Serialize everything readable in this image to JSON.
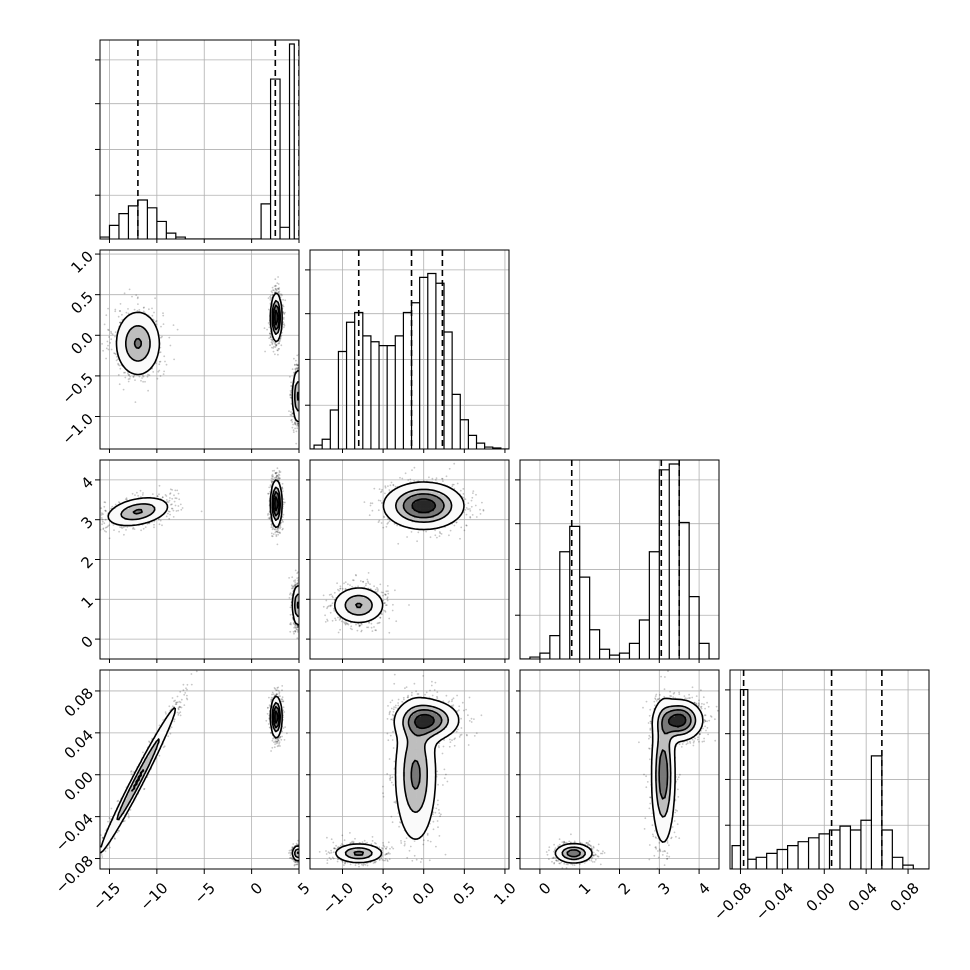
{
  "chart_data": {
    "type": "corner",
    "parameters": [
      {
        "range": [
          -16,
          5
        ],
        "ticks": [
          -15,
          -10,
          -5,
          0,
          5
        ],
        "tick_labels": [
          "−15",
          "−10",
          "−5",
          "0",
          "5"
        ],
        "quantiles": [
          -12,
          2.5,
          5.0
        ],
        "histogram": {
          "bins": [
            [
              -16,
              -15,
              0.01
            ],
            [
              -15,
              -14,
              0.07
            ],
            [
              -14,
              -13,
              0.13
            ],
            [
              -13,
              -12,
              0.17
            ],
            [
              -12,
              -11,
              0.2
            ],
            [
              -11,
              -10,
              0.16
            ],
            [
              -10,
              -9,
              0.09
            ],
            [
              -9,
              -8,
              0.03
            ],
            [
              -8,
              -7,
              0.01
            ],
            [
              1,
              2,
              0.18
            ],
            [
              2,
              3,
              0.82
            ],
            [
              3,
              4,
              0.06
            ],
            [
              4,
              4.5,
              1.0
            ]
          ]
        }
      },
      {
        "range": [
          -1.4,
          1.05
        ],
        "ticks": [
          -1.0,
          -0.5,
          0.0,
          0.5,
          1.0
        ],
        "tick_labels": [
          "−1.0",
          "−0.5",
          "0.0",
          "0.5",
          "1.0"
        ],
        "quantiles": [
          -0.8,
          -0.15,
          0.23
        ],
        "histogram": {
          "bins": [
            [
              -1.35,
              -1.25,
              0.02
            ],
            [
              -1.25,
              -1.15,
              0.05
            ],
            [
              -1.15,
              -1.05,
              0.2
            ],
            [
              -1.05,
              -0.95,
              0.5
            ],
            [
              -0.95,
              -0.85,
              0.65
            ],
            [
              -0.85,
              -0.75,
              0.7
            ],
            [
              -0.75,
              -0.65,
              0.58
            ],
            [
              -0.65,
              -0.55,
              0.55
            ],
            [
              -0.55,
              -0.45,
              0.53
            ],
            [
              -0.45,
              -0.35,
              0.53
            ],
            [
              -0.35,
              -0.25,
              0.58
            ],
            [
              -0.25,
              -0.15,
              0.7
            ],
            [
              -0.15,
              -0.05,
              0.75
            ],
            [
              -0.05,
              0.05,
              0.88
            ],
            [
              0.05,
              0.15,
              0.9
            ],
            [
              0.15,
              0.25,
              0.85
            ],
            [
              0.25,
              0.35,
              0.6
            ],
            [
              0.35,
              0.45,
              0.28
            ],
            [
              0.45,
              0.55,
              0.15
            ],
            [
              0.55,
              0.65,
              0.07
            ],
            [
              0.65,
              0.75,
              0.03
            ],
            [
              0.75,
              0.85,
              0.01
            ],
            [
              0.85,
              0.95,
              0.005
            ]
          ]
        }
      },
      {
        "range": [
          -0.5,
          4.5
        ],
        "ticks": [
          0,
          1,
          2,
          3,
          4
        ],
        "tick_labels": [
          "0",
          "1",
          "2",
          "3",
          "4"
        ],
        "quantiles": [
          0.8,
          3.05,
          3.5
        ],
        "histogram": {
          "bins": [
            [
              -0.25,
              0.0,
              0.01
            ],
            [
              0.0,
              0.25,
              0.03
            ],
            [
              0.25,
              0.5,
              0.12
            ],
            [
              0.5,
              0.75,
              0.55
            ],
            [
              0.75,
              1.0,
              0.68
            ],
            [
              1.0,
              1.25,
              0.42
            ],
            [
              1.25,
              1.5,
              0.15
            ],
            [
              1.5,
              1.75,
              0.05
            ],
            [
              1.75,
              2.0,
              0.02
            ],
            [
              2.0,
              2.25,
              0.03
            ],
            [
              2.25,
              2.5,
              0.08
            ],
            [
              2.5,
              2.75,
              0.2
            ],
            [
              2.75,
              3.0,
              0.55
            ],
            [
              3.0,
              3.25,
              0.97
            ],
            [
              3.25,
              3.5,
              1.0
            ],
            [
              3.5,
              3.75,
              0.7
            ],
            [
              3.75,
              4.0,
              0.32
            ],
            [
              4.0,
              4.25,
              0.08
            ]
          ]
        }
      },
      {
        "range": [
          -0.09,
          0.1
        ],
        "ticks": [
          -0.08,
          -0.04,
          0.0,
          0.04,
          0.08
        ],
        "tick_labels": [
          "−0.08",
          "−0.04",
          "0.00",
          "0.04",
          "0.08"
        ],
        "quantiles": [
          -0.077,
          0.007,
          0.055
        ],
        "histogram": {
          "bins": [
            [
              -0.088,
              -0.08,
              0.12
            ],
            [
              -0.08,
              -0.073,
              0.92
            ],
            [
              -0.073,
              -0.065,
              0.05
            ],
            [
              -0.065,
              -0.055,
              0.06
            ],
            [
              -0.055,
              -0.045,
              0.08
            ],
            [
              -0.045,
              -0.035,
              0.1
            ],
            [
              -0.035,
              -0.025,
              0.12
            ],
            [
              -0.025,
              -0.015,
              0.14
            ],
            [
              -0.015,
              -0.005,
              0.16
            ],
            [
              -0.005,
              0.005,
              0.18
            ],
            [
              0.005,
              0.015,
              0.2
            ],
            [
              0.015,
              0.025,
              0.22
            ],
            [
              0.025,
              0.035,
              0.2
            ],
            [
              0.035,
              0.045,
              0.25
            ],
            [
              0.045,
              0.055,
              0.58
            ],
            [
              0.055,
              0.065,
              0.2
            ],
            [
              0.065,
              0.075,
              0.06
            ],
            [
              0.075,
              0.085,
              0.02
            ]
          ]
        }
      }
    ],
    "pairs": [
      {
        "row": 1,
        "col": 0,
        "clusters": [
          {
            "cx": -12,
            "cy": -0.1,
            "sx": 1.3,
            "sy": 0.22,
            "rho": 0,
            "weight": 1
          },
          {
            "cx": 2.6,
            "cy": 0.22,
            "sx": 0.3,
            "sy": 0.15,
            "rho": 0,
            "weight": 1.6
          },
          {
            "cx": 4.85,
            "cy": -0.75,
            "sx": 0.3,
            "sy": 0.18,
            "rho": 0,
            "weight": 1
          }
        ]
      },
      {
        "row": 2,
        "col": 0,
        "clusters": [
          {
            "cx": -12,
            "cy": 3.2,
            "sx": 1.8,
            "sy": 0.2,
            "rho": 0.35,
            "weight": 1
          },
          {
            "cx": 2.6,
            "cy": 3.4,
            "sx": 0.3,
            "sy": 0.3,
            "rho": 0,
            "weight": 1.6
          },
          {
            "cx": 4.85,
            "cy": 0.85,
            "sx": 0.3,
            "sy": 0.28,
            "rho": 0,
            "weight": 1
          }
        ]
      },
      {
        "row": 2,
        "col": 1,
        "clusters": [
          {
            "cx": 0.0,
            "cy": 3.35,
            "sx": 0.25,
            "sy": 0.3,
            "rho": 0,
            "weight": 1.6
          },
          {
            "cx": -0.8,
            "cy": 0.85,
            "sx": 0.17,
            "sy": 0.25,
            "rho": 0,
            "weight": 1
          }
        ]
      },
      {
        "row": 3,
        "col": 0,
        "clusters": [
          {
            "cx": -12,
            "cy": -0.005,
            "sx": 2.3,
            "sy": 0.04,
            "rho": 0.985,
            "weight": 1
          },
          {
            "cx": 2.6,
            "cy": 0.055,
            "sx": 0.3,
            "sy": 0.01,
            "rho": 0,
            "weight": 1.6
          },
          {
            "cx": 4.85,
            "cy": -0.075,
            "sx": 0.3,
            "sy": 0.004,
            "rho": 0,
            "weight": 1
          }
        ]
      },
      {
        "row": 3,
        "col": 1,
        "clusters": [
          {
            "cx": 0.05,
            "cy": 0.052,
            "sx": 0.2,
            "sy": 0.01,
            "rho": 0,
            "weight": 1.3
          },
          {
            "cx": -0.1,
            "cy": 0.0,
            "sx": 0.14,
            "sy": 0.035,
            "rho": 0,
            "weight": 1
          },
          {
            "cx": -0.8,
            "cy": -0.075,
            "sx": 0.16,
            "sy": 0.005,
            "rho": 0,
            "weight": 1
          }
        ]
      },
      {
        "row": 3,
        "col": 2,
        "clusters": [
          {
            "cx": 3.5,
            "cy": 0.052,
            "sx": 0.3,
            "sy": 0.01,
            "rho": 0,
            "weight": 1.3
          },
          {
            "cx": 3.1,
            "cy": 0.0,
            "sx": 0.16,
            "sy": 0.035,
            "rho": 0,
            "weight": 1
          },
          {
            "cx": 0.85,
            "cy": -0.075,
            "sx": 0.25,
            "sy": 0.005,
            "rho": 0,
            "weight": 1
          }
        ]
      }
    ],
    "grid": true
  }
}
